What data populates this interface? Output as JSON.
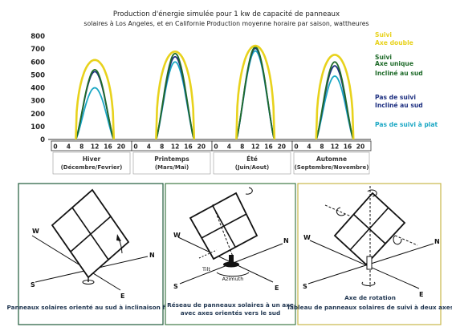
{
  "chart_data": {
    "type": "line",
    "title_line1": "Production d'énergie simulée pour 1 kw de capacité de panneaux",
    "title_line2": "solaires à Los Angeles, et en Californie Production moyenne horaire par saison, wattheures",
    "y_ticks": [
      "800",
      "700",
      "600",
      "500",
      "400",
      "300",
      "200",
      "100",
      "0"
    ],
    "ylim": [
      0,
      800
    ],
    "hour_ticks": [
      "0",
      "4",
      "8",
      "12",
      "16",
      "20"
    ],
    "grid": false,
    "seasons": [
      {
        "name": "Hiver",
        "months": "(Décembre/Fevrier)",
        "peaks": [
          615,
          540,
          525,
          400
        ]
      },
      {
        "name": "Printemps",
        "months": "(Mars/Mai)",
        "peaks": [
          680,
          665,
          640,
          600
        ]
      },
      {
        "name": "Été",
        "months": "(Juin/Aout)",
        "peaks": [
          725,
          715,
          705,
          685
        ]
      },
      {
        "name": "Automne",
        "months": "(Septembre/Novembre)",
        "peaks": [
          655,
          600,
          570,
          490
        ]
      }
    ],
    "series": [
      {
        "name": "Suivi Axe double",
        "lines": [
          "Suivi",
          "Axe double"
        ],
        "color": "#e8d21c",
        "width": 2.6
      },
      {
        "name": "Suivi Axe unique Incliné au sud",
        "lines": [
          "Suivi",
          "Axe unique",
          "Incliné au sud"
        ],
        "color": "#1f6b2a",
        "width": 1.8
      },
      {
        "name": "Pas de suivi Incliné au sud",
        "lines": [
          "Pas de suivi",
          "Incliné au sud"
        ],
        "color": "#1d2f80",
        "width": 1.8
      },
      {
        "name": "Pas de suivi à plat",
        "lines": [
          "Pas de suivi à plat"
        ],
        "color": "#1aa7c4",
        "width": 1.8
      }
    ]
  },
  "panels": [
    {
      "caption": [
        "Panneaux solaires orienté au sud à inclinaison fixe"
      ],
      "border_color": "#1f5a3a",
      "labels": {
        "w": "W",
        "n": "N",
        "s": "S",
        "e": "E"
      }
    },
    {
      "caption": [
        "Réseau de panneaux solaires à un axe",
        "avec axes orientés vers le sud"
      ],
      "border_color": "#3f7a45",
      "labels": {
        "w": "W",
        "n": "N",
        "s": "S",
        "e": "E",
        "tilt": "Tilt",
        "azimuth": "Azimuth"
      }
    },
    {
      "caption": [
        "Tableau de panneaux solaires de suivi à deux axes"
      ],
      "border_color": "#c9b84a",
      "labels": {
        "w": "W",
        "n": "N",
        "s": "S",
        "e": "E",
        "axis": "Axe de rotation"
      }
    }
  ]
}
